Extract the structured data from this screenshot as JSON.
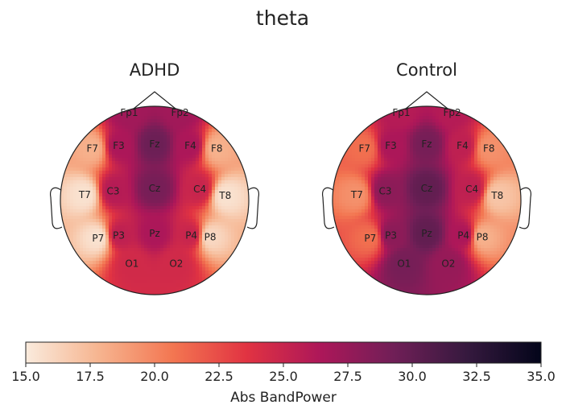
{
  "chart_data": [
    {
      "type": "heatmap",
      "title": "ADHD",
      "electrodes": [
        {
          "name": "Fp1",
          "value": 27.0
        },
        {
          "name": "Fp2",
          "value": 27.0
        },
        {
          "name": "F7",
          "value": 18.0
        },
        {
          "name": "F3",
          "value": 26.5
        },
        {
          "name": "Fz",
          "value": 29.5
        },
        {
          "name": "F4",
          "value": 26.5
        },
        {
          "name": "F8",
          "value": 18.0
        },
        {
          "name": "T7",
          "value": 15.5
        },
        {
          "name": "C3",
          "value": 26.0
        },
        {
          "name": "Cz",
          "value": 29.0
        },
        {
          "name": "C4",
          "value": 25.0
        },
        {
          "name": "T8",
          "value": 15.5
        },
        {
          "name": "P7",
          "value": 15.5
        },
        {
          "name": "P3",
          "value": 25.5
        },
        {
          "name": "Pz",
          "value": 26.5
        },
        {
          "name": "P4",
          "value": 25.0
        },
        {
          "name": "P8",
          "value": 16.0
        },
        {
          "name": "O1",
          "value": 24.5
        },
        {
          "name": "O2",
          "value": 24.5
        }
      ]
    },
    {
      "type": "heatmap",
      "title": "Control",
      "electrodes": [
        {
          "name": "Fp1",
          "value": 26.0
        },
        {
          "name": "Fp2",
          "value": 26.0
        },
        {
          "name": "F7",
          "value": 21.0
        },
        {
          "name": "F3",
          "value": 26.5
        },
        {
          "name": "Fz",
          "value": 29.0
        },
        {
          "name": "F4",
          "value": 25.5
        },
        {
          "name": "F8",
          "value": 19.5
        },
        {
          "name": "T7",
          "value": 19.5
        },
        {
          "name": "C3",
          "value": 28.0
        },
        {
          "name": "Cz",
          "value": 30.0
        },
        {
          "name": "C4",
          "value": 25.5
        },
        {
          "name": "T8",
          "value": 17.0
        },
        {
          "name": "P7",
          "value": 21.0
        },
        {
          "name": "P3",
          "value": 28.0
        },
        {
          "name": "Pz",
          "value": 30.0
        },
        {
          "name": "P4",
          "value": 26.5
        },
        {
          "name": "P8",
          "value": 18.0
        },
        {
          "name": "O1",
          "value": 29.0
        },
        {
          "name": "O2",
          "value": 27.5
        }
      ]
    }
  ],
  "figure": {
    "suptitle": "theta",
    "colorbar": {
      "label": "Abs BandPower",
      "range": [
        15.0,
        35.0
      ],
      "ticks": [
        "15.0",
        "17.5",
        "20.0",
        "22.5",
        "25.0",
        "27.5",
        "30.0",
        "32.5",
        "35.0"
      ],
      "colormap_stops": [
        "#faebdd",
        "#f6b48f",
        "#f37651",
        "#e13342",
        "#ad1759",
        "#701f57",
        "#35193e",
        "#03051a"
      ]
    }
  }
}
